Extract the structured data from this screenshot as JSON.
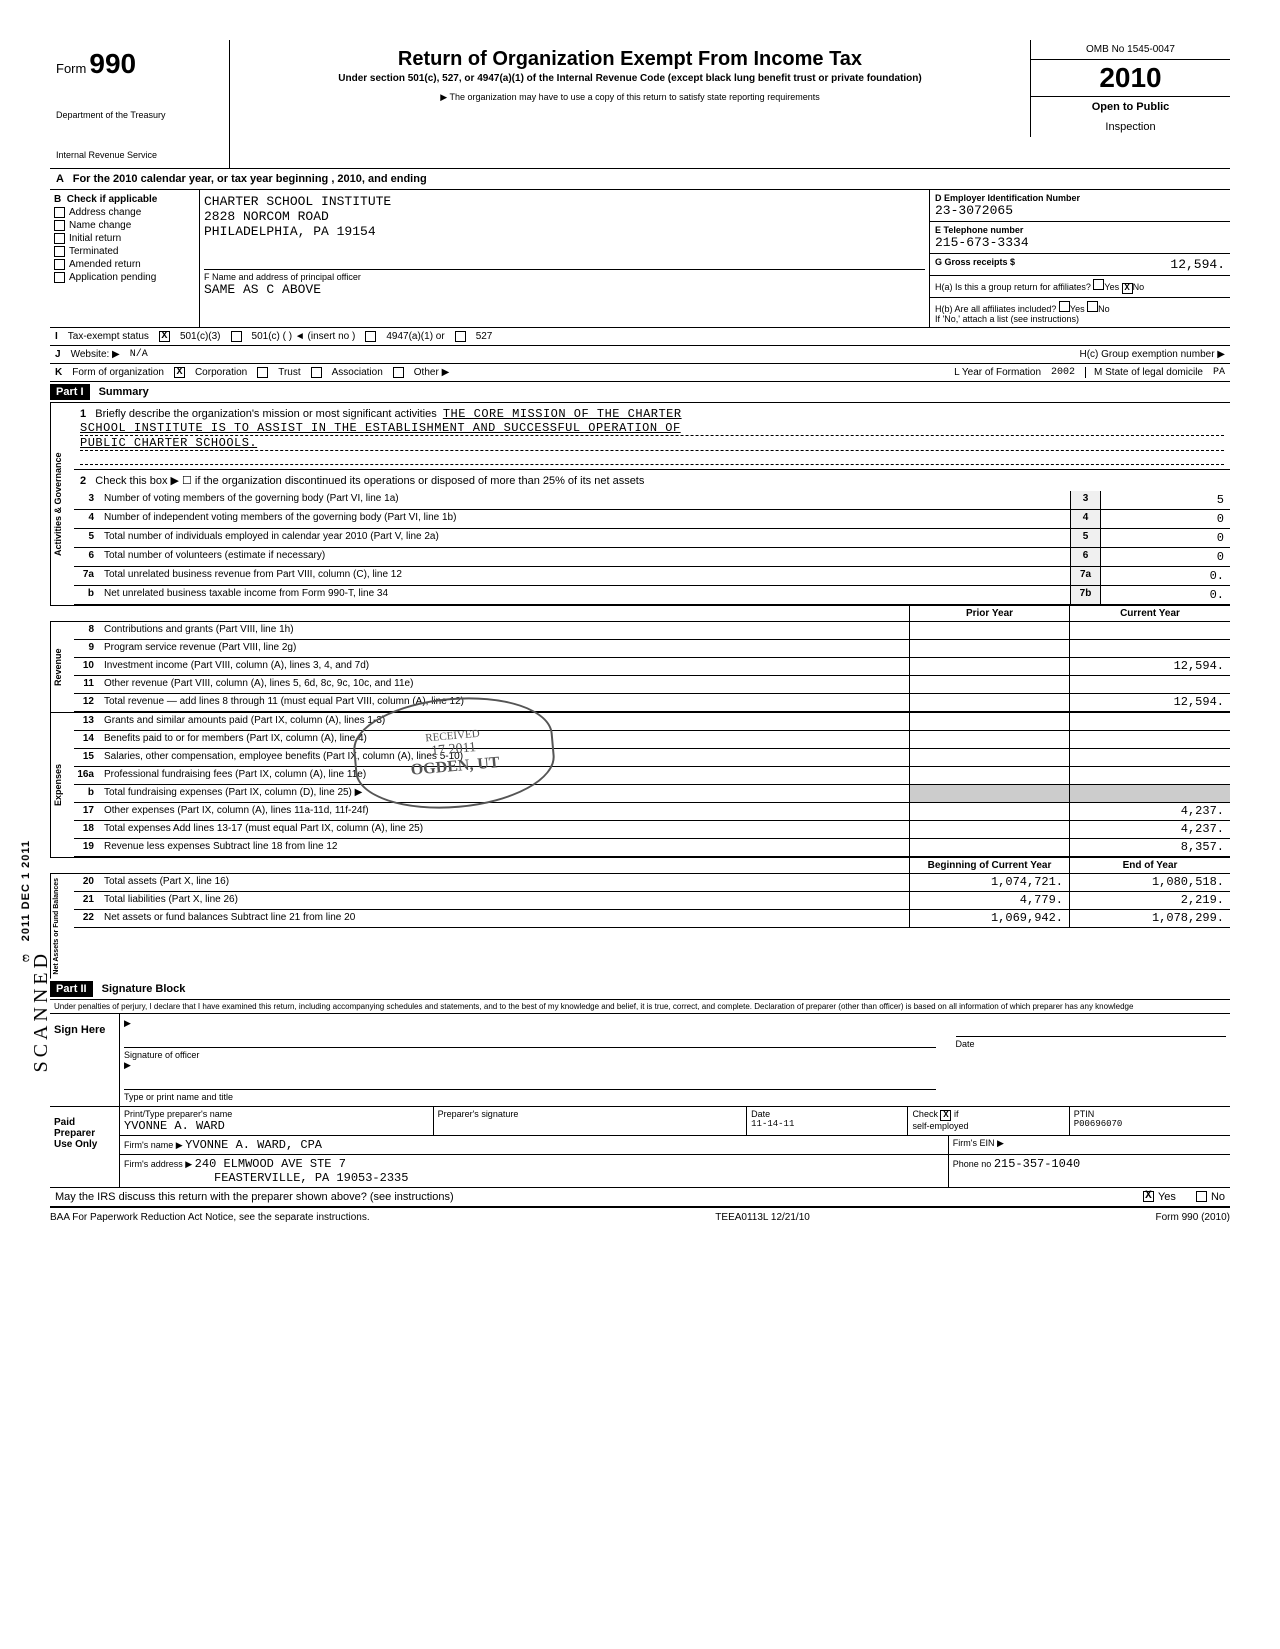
{
  "header": {
    "form_word": "Form",
    "form_num": "990",
    "dept1": "Department of the Treasury",
    "dept2": "Internal Revenue Service",
    "title": "Return of Organization Exempt From Income Tax",
    "subtitle": "Under section 501(c), 527, or 4947(a)(1) of the Internal Revenue Code (except black lung benefit trust or private foundation)",
    "note": "▶ The organization may have to use a copy of this return to satisfy state reporting requirements",
    "omb": "OMB No 1545-0047",
    "year": "2010",
    "open1": "Open to Public",
    "open2": "Inspection"
  },
  "line_a": "For the 2010 calendar year, or tax year beginning                              , 2010, and ending",
  "section_b": {
    "header": "Check if applicable",
    "items": [
      "Address change",
      "Name change",
      "Initial return",
      "Terminated",
      "Amended return",
      "Application pending"
    ]
  },
  "section_c": {
    "name": "CHARTER SCHOOL INSTITUTE",
    "addr1": "2828 NORCOM ROAD",
    "addr2": "PHILADELPHIA, PA 19154",
    "f_label": "F  Name and address of principal officer",
    "f_val": "SAME AS C ABOVE"
  },
  "section_d": {
    "d_label": "D  Employer Identification Number",
    "d_val": "23-3072065",
    "e_label": "E  Telephone number",
    "e_val": "215-673-3334",
    "g_label": "G  Gross receipts $",
    "g_val": "12,594."
  },
  "section_h": {
    "ha": "H(a) Is this a group return for affiliates?",
    "hb": "H(b) Are all affiliates included?",
    "hb_note": "If 'No,' attach a list (see instructions)",
    "hc": "H(c) Group exemption number ▶",
    "yes": "Yes",
    "no": "No",
    "x": "X"
  },
  "line_i": {
    "label": "Tax-exempt status",
    "opt1": "501(c)(3)",
    "opt2": "501(c) (          ) ◄  (insert no )",
    "opt3": "4947(a)(1) or",
    "opt4": "527",
    "x": "X"
  },
  "line_j": {
    "label": "Website: ▶",
    "val": "N/A"
  },
  "line_k": {
    "label": "Form of organization",
    "corp": "Corporation",
    "trust": "Trust",
    "assoc": "Association",
    "other": "Other ▶",
    "l_label": "L Year of Formation",
    "l_val": "2002",
    "m_label": "M State of legal domicile",
    "m_val": "PA",
    "x": "X"
  },
  "part1": {
    "hdr": "Part I",
    "title": "Summary",
    "line1_label": "Briefly describe the organization's mission or most significant activities",
    "mission1": "THE CORE MISSION OF THE CHARTER",
    "mission2": "SCHOOL INSTITUTE IS TO ASSIST IN THE ESTABLISHMENT AND SUCCESSFUL OPERATION OF",
    "mission3": "PUBLIC CHARTER SCHOOLS.",
    "line2": "Check this box ▶ ☐ if the organization discontinued its operations or disposed of more than 25% of its net assets",
    "rows_gov": [
      {
        "n": "3",
        "t": "Number of voting members of the governing body (Part VI, line 1a)",
        "box": "3",
        "v": "5"
      },
      {
        "n": "4",
        "t": "Number of independent voting members of the governing body (Part VI, line 1b)",
        "box": "4",
        "v": "0"
      },
      {
        "n": "5",
        "t": "Total number of individuals employed in calendar year 2010 (Part V, line 2a)",
        "box": "5",
        "v": "0"
      },
      {
        "n": "6",
        "t": "Total number of volunteers (estimate if necessary)",
        "box": "6",
        "v": "0"
      },
      {
        "n": "7a",
        "t": "Total unrelated business revenue from Part VIII, column (C), line 12",
        "box": "7a",
        "v": "0."
      },
      {
        "n": "b",
        "t": "Net unrelated business taxable income from Form 990-T, line 34",
        "box": "7b",
        "v": "0."
      }
    ],
    "col_prior": "Prior Year",
    "col_current": "Current Year",
    "rows_rev": [
      {
        "n": "8",
        "t": "Contributions and grants (Part VIII, line 1h)",
        "p": "",
        "c": ""
      },
      {
        "n": "9",
        "t": "Program service revenue (Part VIII, line 2g)",
        "p": "",
        "c": ""
      },
      {
        "n": "10",
        "t": "Investment income (Part VIII, column (A), lines 3, 4, and 7d)",
        "p": "",
        "c": "12,594."
      },
      {
        "n": "11",
        "t": "Other revenue (Part VIII, column (A), lines 5, 6d, 8c, 9c, 10c, and 11e)",
        "p": "",
        "c": ""
      },
      {
        "n": "12",
        "t": "Total revenue — add lines 8 through 11 (must equal Part VIII, column (A), line 12)",
        "p": "",
        "c": "12,594."
      }
    ],
    "rows_exp": [
      {
        "n": "13",
        "t": "Grants and similar amounts paid (Part IX, column (A), lines 1-3)",
        "p": "",
        "c": ""
      },
      {
        "n": "14",
        "t": "Benefits paid to or for members (Part IX, column (A), line 4)",
        "p": "",
        "c": ""
      },
      {
        "n": "15",
        "t": "Salaries, other compensation, employee benefits (Part IX, column (A), lines 5-10)",
        "p": "",
        "c": ""
      },
      {
        "n": "16a",
        "t": "Professional fundraising fees (Part IX, column (A), line 11e)",
        "p": "",
        "c": ""
      },
      {
        "n": "b",
        "t": "Total fundraising expenses (Part IX, column (D), line 25) ▶",
        "p": "—",
        "c": "—"
      },
      {
        "n": "17",
        "t": "Other expenses (Part IX, column (A), lines 11a-11d, 11f-24f)",
        "p": "",
        "c": "4,237."
      },
      {
        "n": "18",
        "t": "Total expenses  Add lines 13-17 (must equal Part IX, column (A), line 25)",
        "p": "",
        "c": "4,237."
      },
      {
        "n": "19",
        "t": "Revenue less expenses  Subtract line 18 from line 12",
        "p": "",
        "c": "8,357."
      }
    ],
    "col_begin": "Beginning of Current Year",
    "col_end": "End of Year",
    "rows_net": [
      {
        "n": "20",
        "t": "Total assets (Part X, line 16)",
        "p": "1,074,721.",
        "c": "1,080,518."
      },
      {
        "n": "21",
        "t": "Total liabilities (Part X, line 26)",
        "p": "4,779.",
        "c": "2,219."
      },
      {
        "n": "22",
        "t": "Net assets or fund balances  Subtract line 21 from line 20",
        "p": "1,069,942.",
        "c": "1,078,299."
      }
    ]
  },
  "side_labels": {
    "gov": "Activities & Governance",
    "rev": "Revenue",
    "exp": "Expenses",
    "net": "Net Assets or\nFund Balances"
  },
  "stamps": {
    "received": "RECEIVED",
    "date": "17 2011",
    "ogden": "OGDEN, UT",
    "dec": "DEC 1 2011",
    "scanned": "SCANNED"
  },
  "part2": {
    "hdr": "Part II",
    "title": "Signature Block",
    "perjury": "Under penalties of perjury, I declare that I have examined this return, including accompanying schedules and statements, and to the best of my knowledge and belief, it is true, correct, and complete. Declaration of preparer (other than officer) is based on all information of which preparer has any knowledge",
    "sign_here": "Sign Here",
    "sig_officer": "Signature of officer",
    "date": "Date",
    "type_name": "Type or print name and title",
    "paid": "Paid Preparer Use Only",
    "prep_name_label": "Print/Type preparer's name",
    "prep_name": "YVONNE A. WARD",
    "prep_sig_label": "Preparer's signature",
    "prep_date": "11-14-11",
    "check_label": "Check",
    "if": "if",
    "self": "self-employed",
    "x": "X",
    "ptin_label": "PTIN",
    "ptin": "P00696070",
    "firm_name_label": "Firm's name    ▶",
    "firm_name": "YVONNE A. WARD, CPA",
    "firm_addr_label": "Firm's address ▶",
    "firm_addr1": "240 ELMWOOD AVE STE 7",
    "firm_addr2": "FEASTERVILLE, PA 19053-2335",
    "firm_ein_label": "Firm's EIN ▶",
    "phone_label": "Phone no",
    "phone": "215-357-1040",
    "irs_discuss": "May the IRS discuss this return with the preparer shown above? (see instructions)",
    "yes": "Yes",
    "no": "No"
  },
  "footer": {
    "baa": "BAA  For Paperwork Reduction Act Notice, see the separate instructions.",
    "code": "TEEA0113L  12/21/10",
    "form": "Form 990 (2010)"
  }
}
